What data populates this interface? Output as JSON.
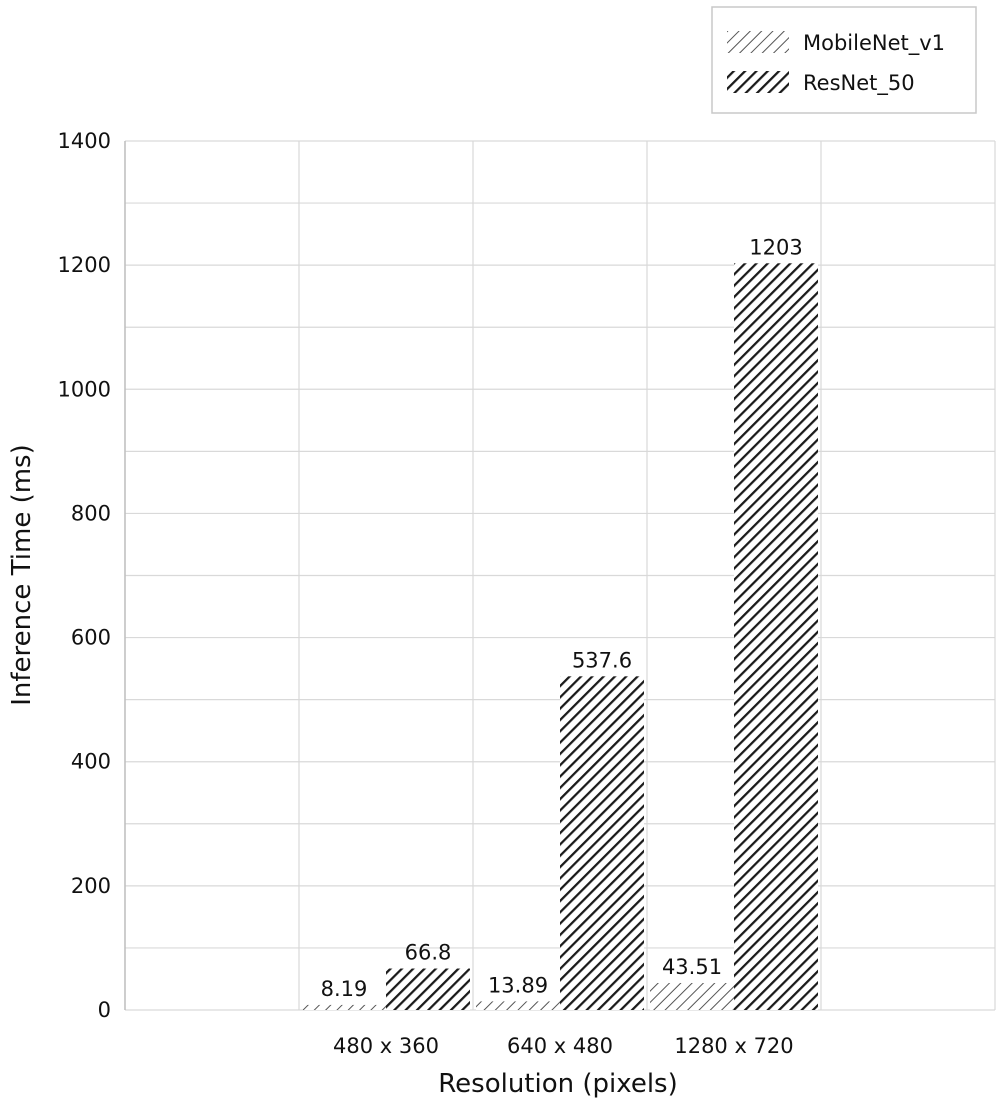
{
  "chart_data": {
    "type": "bar",
    "title": "",
    "xlabel": "Resolution (pixels)",
    "ylabel": "Inference Time (ms)",
    "categories": [
      "",
      "480 x 360",
      "640 x 480",
      "1280 x 720",
      ""
    ],
    "series": [
      {
        "name": "MobileNet_v1",
        "values": [
          null,
          8.19,
          13.89,
          43.51,
          null
        ],
        "labels": [
          "",
          "8.19",
          "13.89",
          "43.51",
          ""
        ],
        "pattern": "light-diagonal-hatch"
      },
      {
        "name": "ResNet_50",
        "values": [
          null,
          66.8,
          537.6,
          1203,
          null
        ],
        "labels": [
          "",
          "66.8",
          "537.6",
          "1203",
          ""
        ],
        "pattern": "dense-diagonal-hatch"
      }
    ],
    "ylim": [
      0,
      1400
    ],
    "yticks": [
      "0",
      "200",
      "400",
      "600",
      "800",
      "1000",
      "1200",
      "1400"
    ],
    "grid": true,
    "legend_position": "top-right"
  },
  "colors": {
    "grid": "#d9d9d9",
    "axis": "#bfbfbf",
    "hatch": "#1a1a1a"
  }
}
